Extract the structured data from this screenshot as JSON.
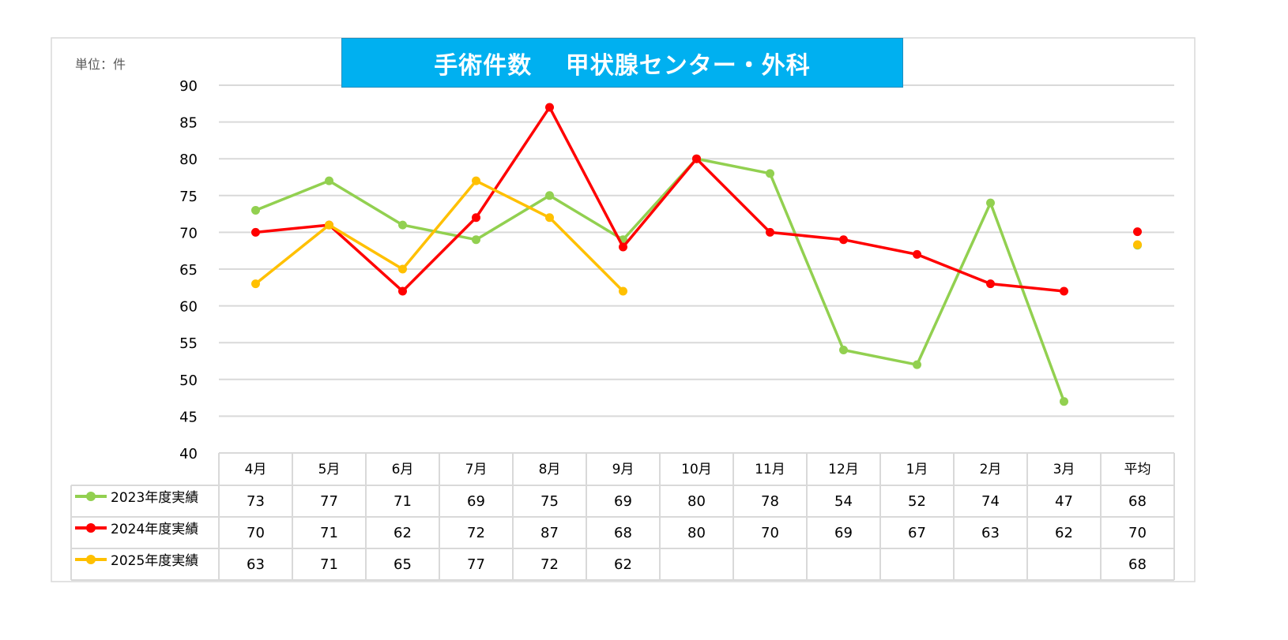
{
  "chart_data": {
    "type": "line",
    "title": "手術件数　 甲状腺センター・外科",
    "unit_label": "単位：件",
    "ylim": [
      40,
      90
    ],
    "yticks": [
      40,
      45,
      50,
      55,
      60,
      65,
      70,
      75,
      80,
      85,
      90
    ],
    "grid": true,
    "categories": [
      "4月",
      "5月",
      "6月",
      "7月",
      "8月",
      "9月",
      "10月",
      "11月",
      "12月",
      "1月",
      "2月",
      "3月"
    ],
    "average_label": "平均",
    "series": [
      {
        "name": "2023年度実績",
        "color": "#92d050",
        "values": [
          73,
          77,
          71,
          69,
          75,
          69,
          80,
          78,
          54,
          52,
          74,
          47
        ],
        "average": 68.25,
        "average_label": "68"
      },
      {
        "name": "2024年度実績",
        "color": "#ff0000",
        "values": [
          70,
          71,
          62,
          72,
          87,
          68,
          80,
          70,
          69,
          67,
          63,
          62
        ],
        "average": 70.08,
        "average_label": "70"
      },
      {
        "name": "2025年度実績",
        "color": "#ffc000",
        "values": [
          63,
          71,
          65,
          77,
          72,
          62,
          null,
          null,
          null,
          null,
          null,
          null
        ],
        "average": 68.33,
        "average_label": "68"
      }
    ],
    "legend": "table-left"
  }
}
